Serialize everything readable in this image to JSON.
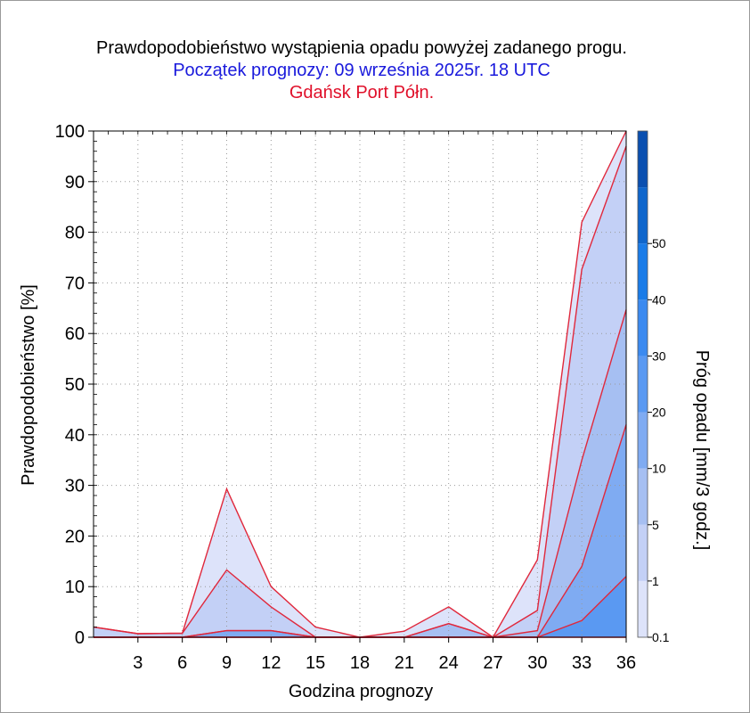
{
  "title": "Prawdopodobieństwo wystąpienia opadu powyżej zadanego progu.",
  "subtitle": "Początek prognozy: 09 września 2025r. 18 UTC",
  "location": "Gdańsk Port Półn.",
  "colors": {
    "title": "#000000",
    "subtitle": "#1a1adc",
    "location": "#e0102a",
    "series_line": "#e0283c",
    "bands": [
      "#dde3fa",
      "#c3d0f6",
      "#a6bff2",
      "#7fabf2",
      "#5a99f2",
      "#3b8af0",
      "#1a7ce8",
      "#0f66cc",
      "#0a4fb0",
      "#063c96"
    ]
  },
  "chart_data": {
    "type": "area",
    "xlabel": "Godzina prognozy",
    "ylabel": "Prawdopodobieństwo [%]",
    "xlim": [
      0,
      36
    ],
    "ylim": [
      0,
      100
    ],
    "x": [
      0,
      3,
      6,
      9,
      12,
      15,
      18,
      21,
      24,
      27,
      30,
      33,
      36
    ],
    "xticks": [
      3,
      6,
      9,
      12,
      15,
      18,
      21,
      24,
      27,
      30,
      33,
      36
    ],
    "yticks": [
      0,
      10,
      20,
      30,
      40,
      50,
      60,
      70,
      80,
      90,
      100
    ],
    "series": [
      {
        "threshold": 0.1,
        "values": [
          2,
          0.7,
          0.8,
          29.3,
          10,
          2,
          0,
          1.2,
          6,
          0,
          15.3,
          82,
          100
        ]
      },
      {
        "threshold": 1,
        "values": [
          2,
          0.7,
          0.8,
          13.3,
          6,
          0,
          0,
          0,
          2.7,
          0,
          5.3,
          72.7,
          97
        ]
      },
      {
        "threshold": 5,
        "values": [
          0,
          0,
          0,
          1.3,
          1.3,
          0,
          0,
          0,
          2.7,
          0,
          1.3,
          35,
          64.7
        ]
      },
      {
        "threshold": 10,
        "values": [
          0,
          0,
          0,
          1.3,
          1.3,
          0,
          0,
          0,
          0,
          0,
          0,
          14,
          42
        ]
      },
      {
        "threshold": 20,
        "values": [
          0,
          0,
          0,
          0,
          0,
          0,
          0,
          0,
          0,
          0,
          0,
          3.3,
          12
        ]
      },
      {
        "threshold": 30,
        "values": [
          0,
          0,
          0,
          0,
          0,
          0,
          0,
          0,
          0,
          0,
          0,
          0,
          0
        ]
      }
    ],
    "colorbar": {
      "label": "Próg opadu [mm/3 godz.]",
      "ticks": [
        "0.1",
        "1",
        "5",
        "10",
        "20",
        "30",
        "40",
        "50"
      ]
    },
    "grid": true
  }
}
